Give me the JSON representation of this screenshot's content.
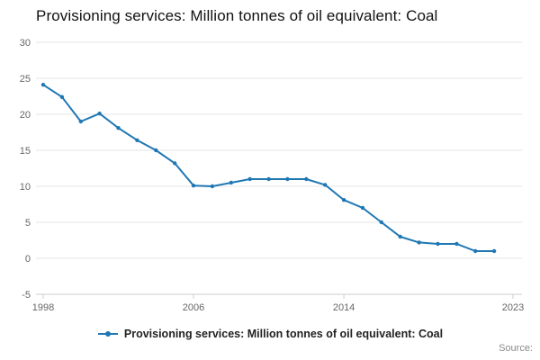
{
  "header": {
    "title": "Provisioning services: Million tonnes of oil equivalent: Coal"
  },
  "legend": {
    "label": "Provisioning services: Million tonnes of oil equivalent: Coal"
  },
  "source": {
    "label": "Source:"
  },
  "chart_data": {
    "type": "line",
    "title": "Provisioning services: Million tonnes of oil equivalent: Coal",
    "series_name": "Provisioning services: Million tonnes of oil equivalent: Coal",
    "color": "#1f77b4",
    "grid": true,
    "legend_position": "bottom",
    "xlabel": "",
    "ylabel": "",
    "xlim": [
      1998,
      2023
    ],
    "ylim": [
      -5,
      30
    ],
    "yticks": [
      -5,
      0,
      5,
      10,
      15,
      20,
      25,
      30
    ],
    "xticks": [
      1998,
      2006,
      2014,
      2023
    ],
    "x": [
      1998,
      1999,
      2000,
      2001,
      2002,
      2003,
      2004,
      2005,
      2006,
      2007,
      2008,
      2009,
      2010,
      2011,
      2012,
      2013,
      2014,
      2015,
      2016,
      2017,
      2018,
      2019,
      2020,
      2021,
      2022
    ],
    "values": [
      24.1,
      22.4,
      19.0,
      20.1,
      18.1,
      16.4,
      15.0,
      13.2,
      10.1,
      10.0,
      10.5,
      11.0,
      11.0,
      11.0,
      11.0,
      10.2,
      8.1,
      7.0,
      5.0,
      3.0,
      2.2,
      2.0,
      2.0,
      1.0,
      1.0
    ]
  }
}
